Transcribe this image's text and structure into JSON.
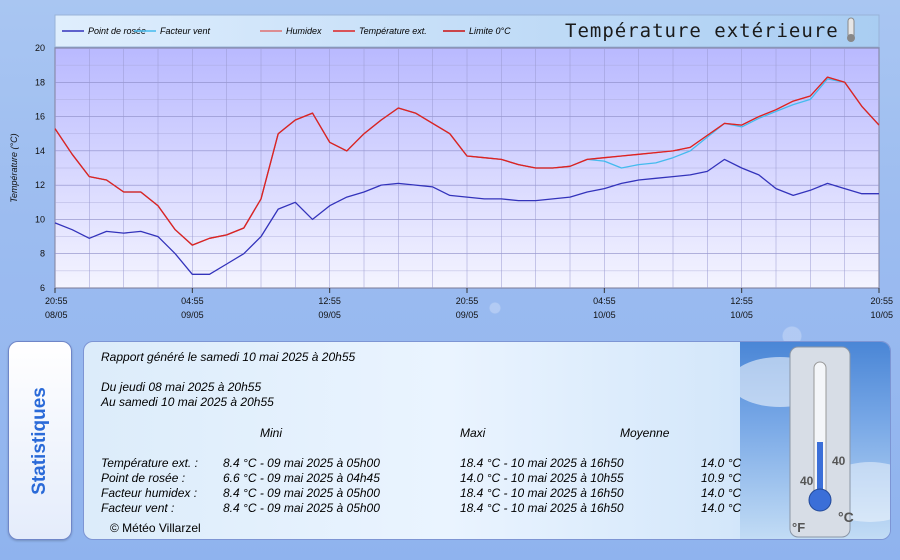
{
  "chart_data": {
    "type": "line",
    "title": "Température extérieure",
    "ylabel": "Température (°C)",
    "ylim": [
      6,
      20
    ],
    "yticks": [
      6,
      8,
      10,
      12,
      14,
      16,
      18,
      20
    ],
    "x_ticks": [
      {
        "time": "20:55",
        "date": "08/05"
      },
      {
        "time": "04:55",
        "date": "09/05"
      },
      {
        "time": "12:55",
        "date": "09/05"
      },
      {
        "time": "20:55",
        "date": "09/05"
      },
      {
        "time": "04:55",
        "date": "10/05"
      },
      {
        "time": "12:55",
        "date": "10/05"
      },
      {
        "time": "20:55",
        "date": "10/05"
      }
    ],
    "x_hours": [
      0,
      1,
      2,
      3,
      4,
      5,
      6,
      7,
      8,
      9,
      10,
      11,
      12,
      13,
      14,
      15,
      16,
      17,
      18,
      19,
      20,
      21,
      22,
      23,
      24,
      25,
      26,
      27,
      28,
      29,
      30,
      31,
      32,
      33,
      34,
      35,
      36,
      37,
      38,
      39,
      40,
      41,
      42,
      43,
      44,
      45,
      46,
      47,
      48
    ],
    "legend": [
      "Point de rosée",
      "Facteur vent",
      "Humidex",
      "Température ext.",
      "Limite 0°C"
    ],
    "series": [
      {
        "name": "Point de rosée",
        "color": "#3333bb",
        "values": [
          9.8,
          9.4,
          8.9,
          9.3,
          9.2,
          9.3,
          9.0,
          8.0,
          6.8,
          6.8,
          7.4,
          8.0,
          9.0,
          10.6,
          11.0,
          10.0,
          10.8,
          11.3,
          11.6,
          12.0,
          12.1,
          12.0,
          11.9,
          11.4,
          11.3,
          11.2,
          11.2,
          11.1,
          11.1,
          11.2,
          11.3,
          11.6,
          11.8,
          12.1,
          12.3,
          12.4,
          12.5,
          12.6,
          12.8,
          13.5,
          13.0,
          12.6,
          11.8,
          11.4,
          11.7,
          12.1,
          11.8,
          11.5,
          11.5
        ]
      },
      {
        "name": "Facteur vent",
        "color": "#44bbee",
        "values": [
          15.3,
          13.8,
          12.5,
          12.3,
          11.6,
          11.6,
          10.8,
          9.4,
          8.5,
          8.9,
          9.1,
          9.5,
          11.2,
          15.0,
          15.8,
          16.2,
          14.5,
          14.0,
          15.0,
          15.8,
          16.5,
          16.2,
          15.6,
          15.0,
          13.7,
          13.6,
          13.5,
          13.2,
          13.0,
          13.0,
          13.1,
          13.5,
          13.4,
          13.0,
          13.2,
          13.3,
          13.6,
          14.0,
          14.8,
          15.6,
          15.4,
          15.9,
          16.3,
          16.7,
          17.0,
          18.2,
          18.0,
          16.6,
          15.5
        ]
      },
      {
        "name": "Humidex",
        "color": "#e07070",
        "values": [
          15.3,
          13.8,
          12.5,
          12.3,
          11.6,
          11.6,
          10.8,
          9.4,
          8.5,
          8.9,
          9.1,
          9.5,
          11.2,
          15.0,
          15.8,
          16.2,
          14.5,
          14.0,
          15.0,
          15.8,
          16.5,
          16.2,
          15.6,
          15.0,
          13.7,
          13.6,
          13.5,
          13.2,
          13.0,
          13.0,
          13.1,
          13.5,
          13.6,
          13.7,
          13.8,
          13.9,
          14.0,
          14.2,
          14.9,
          15.6,
          15.5,
          16.0,
          16.4,
          16.9,
          17.2,
          18.3,
          18.0,
          16.6,
          15.5
        ]
      },
      {
        "name": "Température ext.",
        "color": "#dd2222",
        "values": [
          15.3,
          13.8,
          12.5,
          12.3,
          11.6,
          11.6,
          10.8,
          9.4,
          8.5,
          8.9,
          9.1,
          9.5,
          11.2,
          15.0,
          15.8,
          16.2,
          14.5,
          14.0,
          15.0,
          15.8,
          16.5,
          16.2,
          15.6,
          15.0,
          13.7,
          13.6,
          13.5,
          13.2,
          13.0,
          13.0,
          13.1,
          13.5,
          13.6,
          13.7,
          13.8,
          13.9,
          14.0,
          14.2,
          14.9,
          15.6,
          15.5,
          16.0,
          16.4,
          16.9,
          17.2,
          18.3,
          18.0,
          16.6,
          15.5
        ]
      }
    ]
  },
  "stats": {
    "side_title": "Statistiques",
    "generated": "Rapport généré le samedi 10 mai 2025 à 20h55",
    "from": "Du jeudi 08 mai 2025 à 20h55",
    "to": "Au samedi 10 mai 2025 à 20h55",
    "headers": {
      "mini": "Mini",
      "maxi": "Maxi",
      "moyenne": "Moyenne"
    },
    "rows": [
      {
        "label": "Température ext. :",
        "mini": "8.4 °C - 09 mai 2025 à 05h00",
        "maxi": "18.4 °C - 10 mai 2025 à 16h50",
        "moyenne": "14.0 °C"
      },
      {
        "label": "Point de rosée :",
        "mini": "6.6 °C - 09 mai 2025 à 04h45",
        "maxi": "14.0 °C - 10 mai 2025 à 10h55",
        "moyenne": "10.9 °C"
      },
      {
        "label": "Facteur humidex :",
        "mini": "8.4 °C - 09 mai 2025 à 05h00",
        "maxi": "18.4 °C - 10 mai 2025 à 16h50",
        "moyenne": "14.0 °C"
      },
      {
        "label": "Facteur vent :",
        "mini": "8.4 °C - 09 mai 2025 à 05h00",
        "maxi": "18.4 °C - 10 mai 2025 à 16h50",
        "moyenne": "14.0 °C"
      }
    ],
    "copyright": "© Météo Villarzel",
    "thermo_labels": {
      "fahrenheit": "°F",
      "celsius": "°C",
      "scale": [
        "40",
        "40"
      ]
    }
  }
}
